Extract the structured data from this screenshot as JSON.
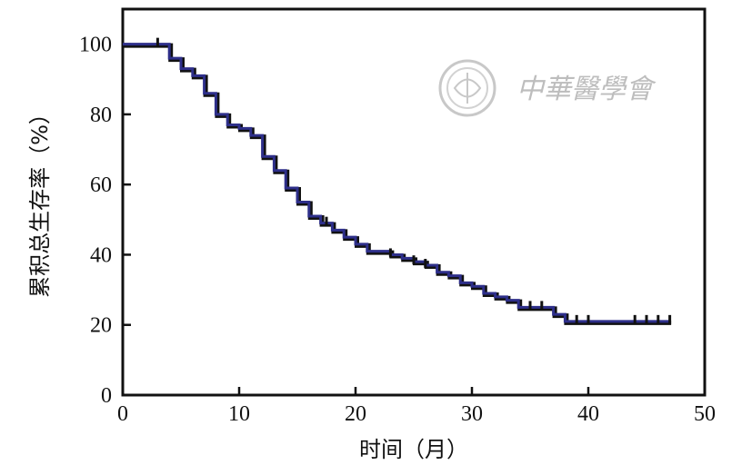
{
  "chart_data": {
    "type": "line",
    "xlabel": "时间（月）",
    "ylabel": "累积总生存率（%）",
    "xlim": [
      0,
      50
    ],
    "ylim": [
      0,
      110
    ],
    "x_ticks": [
      "0",
      "10",
      "20",
      "30",
      "40",
      "50"
    ],
    "y_ticks": [
      "0",
      "20",
      "40",
      "60",
      "80",
      "100"
    ],
    "grid": false,
    "step": true,
    "series": [
      {
        "color": "#2e2f8a",
        "x": [
          0,
          3,
          4,
          5,
          6,
          7,
          8,
          9,
          10,
          11,
          12,
          13,
          14,
          15,
          16,
          17,
          18,
          19,
          20,
          21,
          23,
          24,
          25,
          26,
          27,
          28,
          29,
          30,
          31,
          32,
          33,
          34,
          37,
          38,
          47
        ],
        "y": [
          100,
          100,
          96,
          93,
          91,
          86,
          80,
          77,
          76,
          74,
          68,
          64,
          59,
          55,
          51,
          49,
          47,
          45,
          43,
          41,
          40,
          39,
          38,
          37,
          35,
          34,
          32,
          31,
          29,
          28,
          27,
          25,
          23,
          21,
          21
        ]
      }
    ],
    "censor_marks": {
      "x": [
        3,
        17.5,
        23,
        25,
        26,
        35,
        36,
        39,
        40,
        44,
        45,
        46,
        47
      ],
      "y": [
        100,
        49,
        40,
        38,
        37,
        25,
        25,
        21,
        21,
        21,
        21,
        21,
        21
      ]
    }
  },
  "watermark": {
    "text": "中華醫學會"
  }
}
